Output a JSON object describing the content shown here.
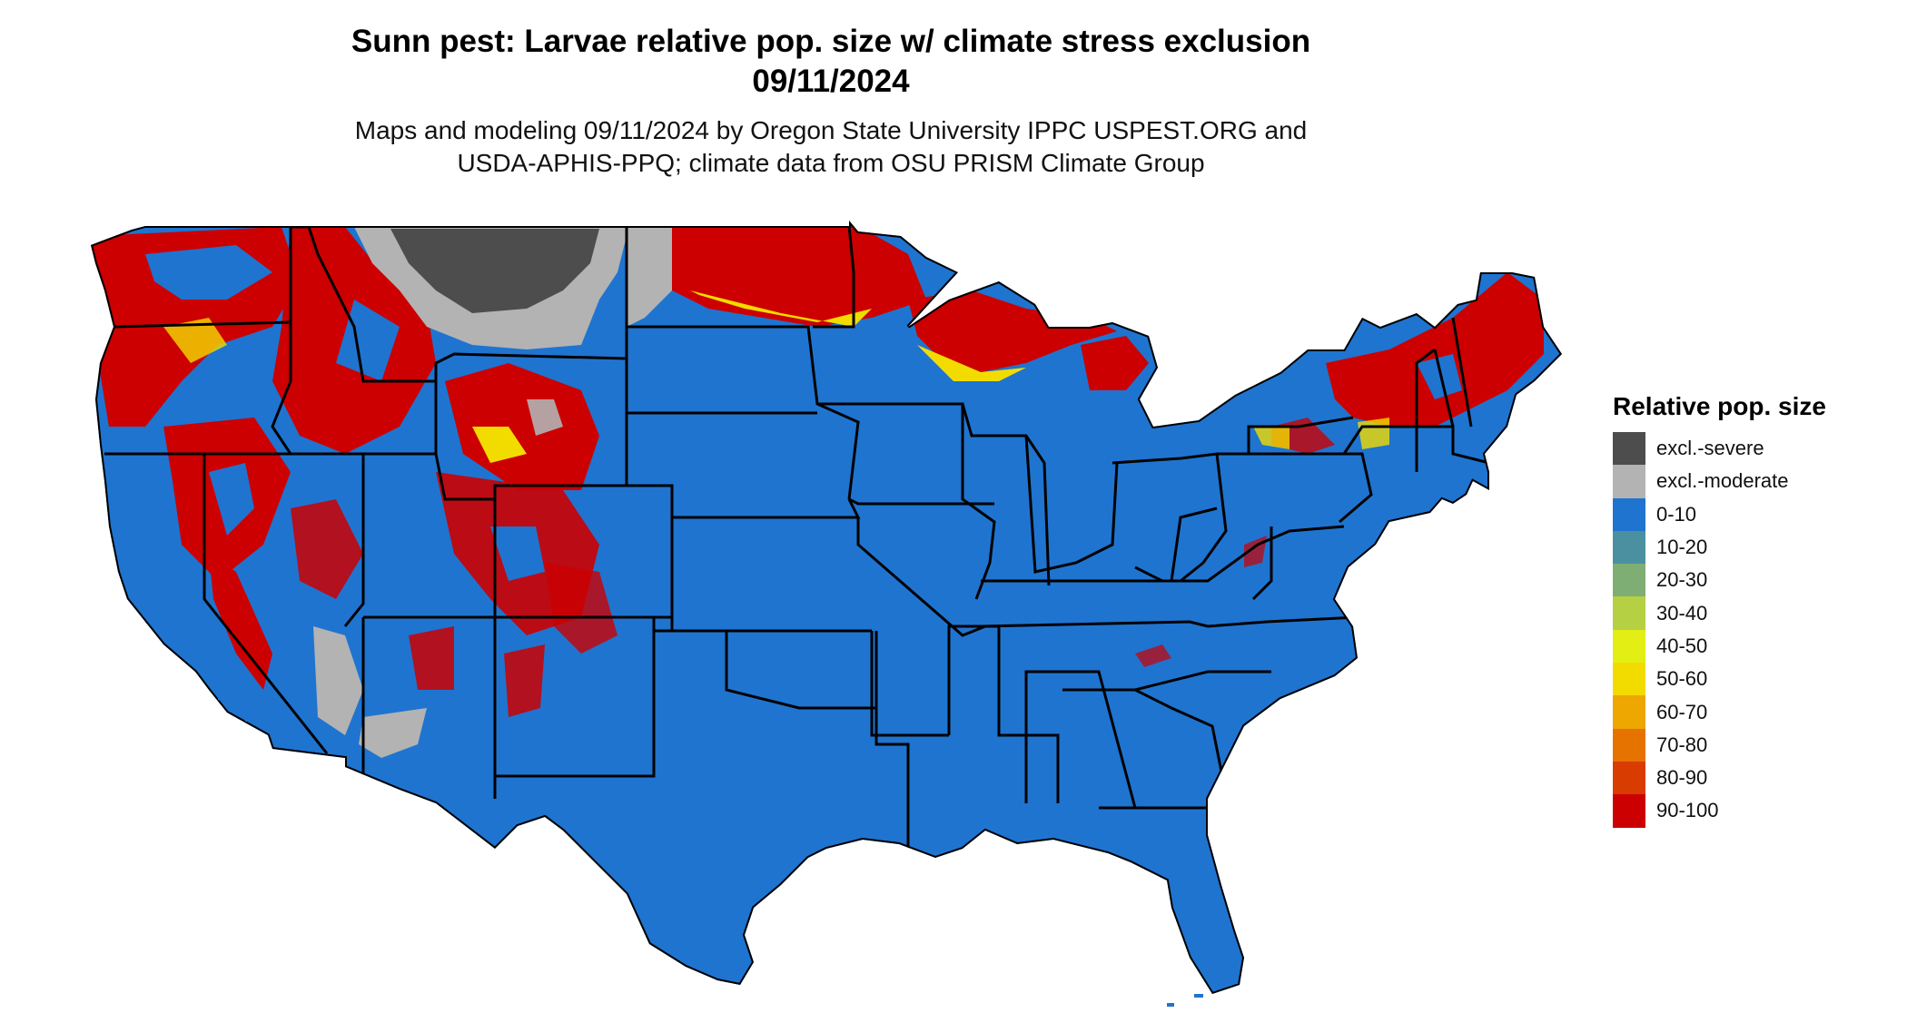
{
  "title": {
    "line1": "Sunn pest: Larvae relative pop. size w/ climate stress exclusion",
    "line2": "09/11/2024"
  },
  "subtitle": {
    "line1": "Maps and modeling 09/11/2024 by Oregon State University IPPC USPEST.ORG and",
    "line2": "USDA-APHIS-PPQ; climate data from OSU PRISM Climate Group"
  },
  "legend": {
    "title": "Relative pop. size",
    "items": [
      {
        "label": "excl.-severe",
        "color": "#4d4d4d"
      },
      {
        "label": "excl.-moderate",
        "color": "#b3b3b3"
      },
      {
        "label": "0-10",
        "color": "#1f74d0"
      },
      {
        "label": "10-20",
        "color": "#4a90a0"
      },
      {
        "label": "20-30",
        "color": "#7fae74"
      },
      {
        "label": "30-40",
        "color": "#b6d044"
      },
      {
        "label": "40-50",
        "color": "#e3ee14"
      },
      {
        "label": "50-60",
        "color": "#f2dc00"
      },
      {
        "label": "60-70",
        "color": "#eea600"
      },
      {
        "label": "70-80",
        "color": "#e67300"
      },
      {
        "label": "80-90",
        "color": "#d93c00"
      },
      {
        "label": "90-100",
        "color": "#cc0000"
      }
    ]
  },
  "map": {
    "base_color": "#1f74d0",
    "severe_color": "#4d4d4d",
    "moderate_color": "#b3b3b3",
    "high_color": "#cc0000",
    "mid_color": "#f2dc00",
    "border_color": "#000000"
  }
}
